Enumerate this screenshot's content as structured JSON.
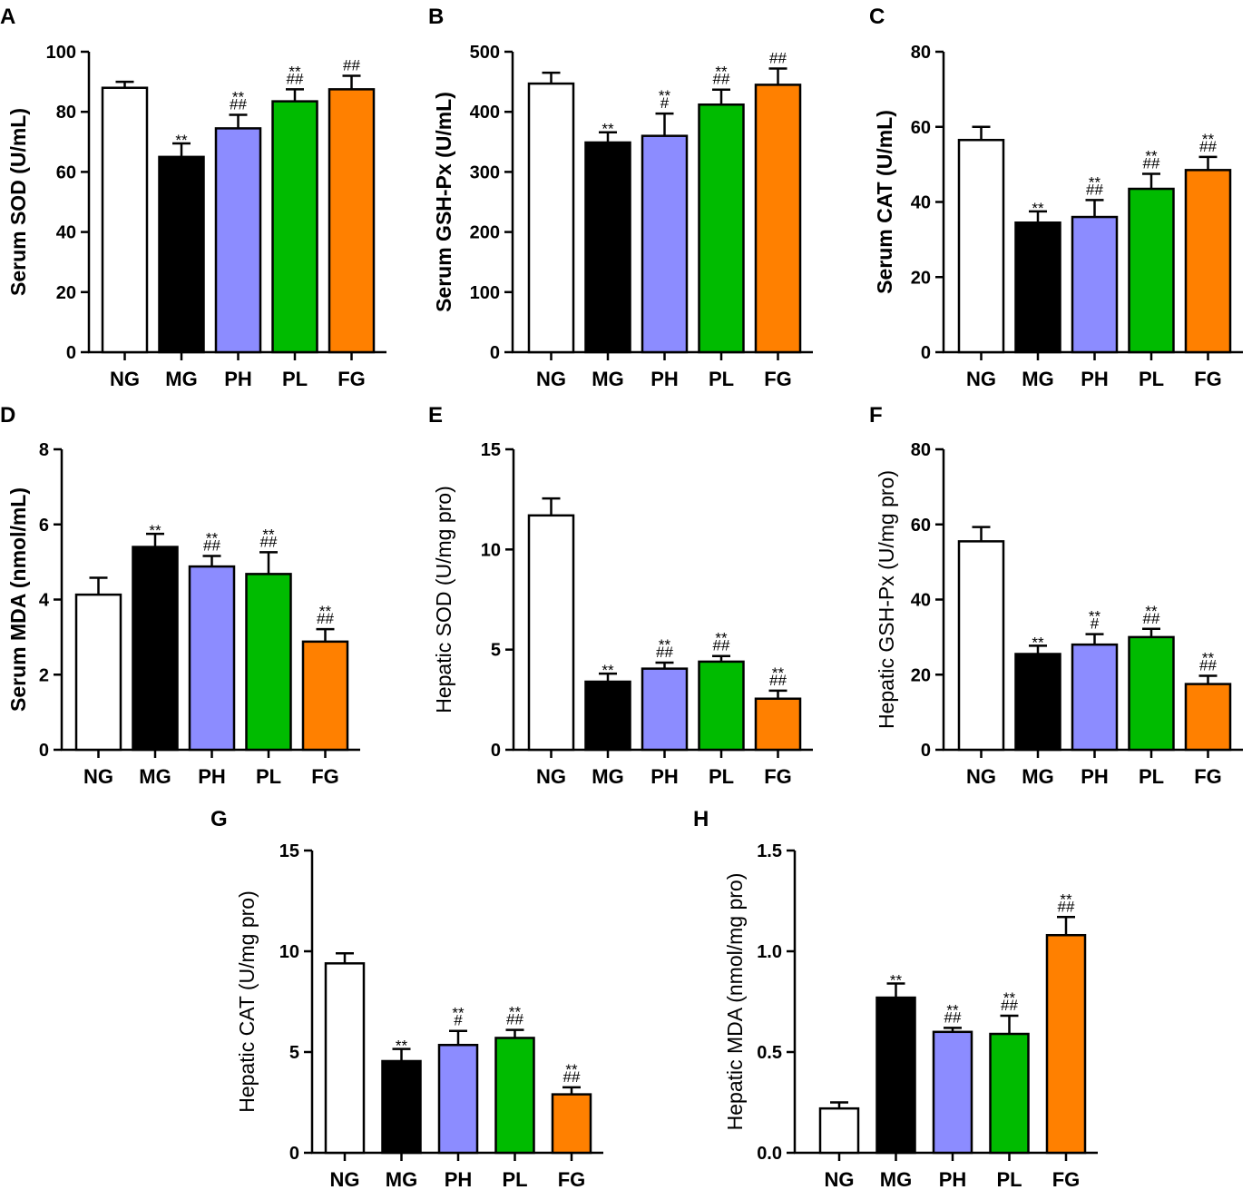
{
  "figure": {
    "groups": [
      "NG",
      "MG",
      "PH",
      "PL",
      "FG"
    ],
    "colors": {
      "NG": "#ffffff",
      "MG": "#000000",
      "PH": "#8c8cff",
      "PL": "#00bb00",
      "FG": "#ff8000"
    }
  },
  "chart_data": [
    {
      "panel": "A",
      "type": "bar",
      "ylabel": "Serum SOD (U/mL)",
      "categories": [
        "NG",
        "MG",
        "PH",
        "PL",
        "FG"
      ],
      "values": [
        88,
        65,
        74.5,
        83.5,
        87.5
      ],
      "errors": [
        2,
        4.5,
        4.5,
        4,
        4.5
      ],
      "ylim": [
        0,
        100
      ],
      "yticks": [
        "0",
        "20",
        "40",
        "60",
        "80",
        "100"
      ],
      "annotations": [
        [],
        [
          "**"
        ],
        [
          "**",
          "##"
        ],
        [
          "**",
          "##"
        ],
        [
          "##"
        ]
      ]
    },
    {
      "panel": "B",
      "type": "bar",
      "ylabel": "Serum GSH-Px (U/mL)",
      "categories": [
        "NG",
        "MG",
        "PH",
        "PL",
        "FG"
      ],
      "values": [
        447,
        349,
        360,
        412,
        445
      ],
      "errors": [
        18,
        17,
        37,
        25,
        27
      ],
      "ylim": [
        0,
        500
      ],
      "yticks": [
        "0",
        "100",
        "200",
        "300",
        "400",
        "500"
      ],
      "annotations": [
        [],
        [
          "**"
        ],
        [
          "**",
          "#"
        ],
        [
          "**",
          "##"
        ],
        [
          "##"
        ]
      ]
    },
    {
      "panel": "C",
      "type": "bar",
      "ylabel": "Serum CAT (U/mL)",
      "categories": [
        "NG",
        "MG",
        "PH",
        "PL",
        "FG"
      ],
      "values": [
        56.5,
        34.5,
        36,
        43.5,
        48.5
      ],
      "errors": [
        3.5,
        3,
        4.5,
        4,
        3.5
      ],
      "ylim": [
        0,
        80
      ],
      "yticks": [
        "0",
        "20",
        "40",
        "60",
        "80"
      ],
      "annotations": [
        [],
        [
          "**"
        ],
        [
          "**",
          "##"
        ],
        [
          "**",
          "##"
        ],
        [
          "**",
          "##"
        ]
      ]
    },
    {
      "panel": "D",
      "type": "bar",
      "ylabel": "Serum MDA (nmol/mL)",
      "categories": [
        "NG",
        "MG",
        "PH",
        "PL",
        "FG"
      ],
      "values": [
        4.13,
        5.4,
        4.88,
        4.68,
        2.88
      ],
      "errors": [
        0.45,
        0.35,
        0.28,
        0.58,
        0.33
      ],
      "ylim": [
        0,
        8
      ],
      "yticks": [
        "0",
        "2",
        "4",
        "6",
        "8"
      ],
      "annotations": [
        [],
        [
          "**"
        ],
        [
          "**",
          "##"
        ],
        [
          "**",
          "##"
        ],
        [
          "**",
          "##"
        ]
      ]
    },
    {
      "panel": "E",
      "type": "bar",
      "ylabel": "Hepatic SOD (U/mg pro)",
      "categories": [
        "NG",
        "MG",
        "PH",
        "PL",
        "FG"
      ],
      "values": [
        11.7,
        3.4,
        4.05,
        4.4,
        2.55
      ],
      "errors": [
        0.85,
        0.4,
        0.3,
        0.28,
        0.4
      ],
      "ylim": [
        0,
        15
      ],
      "yticks": [
        "0",
        "5",
        "10",
        "15"
      ],
      "annotations": [
        [],
        [
          "**"
        ],
        [
          "**",
          "##"
        ],
        [
          "**",
          "##"
        ],
        [
          "**",
          "##"
        ]
      ]
    },
    {
      "panel": "F",
      "type": "bar",
      "ylabel": "Hepatic GSH-Px (U/mg pro)",
      "categories": [
        "NG",
        "MG",
        "PH",
        "PL",
        "FG"
      ],
      "values": [
        55.5,
        25.5,
        28,
        30,
        17.5
      ],
      "errors": [
        3.8,
        2.2,
        2.8,
        2.2,
        2.2
      ],
      "ylim": [
        0,
        80
      ],
      "yticks": [
        "0",
        "20",
        "40",
        "60",
        "80"
      ],
      "annotations": [
        [],
        [
          "**"
        ],
        [
          "**",
          "#"
        ],
        [
          "**",
          "##"
        ],
        [
          "**",
          "##"
        ]
      ]
    },
    {
      "panel": "G",
      "type": "bar",
      "ylabel": "Hepatic CAT (U/mg pro)",
      "categories": [
        "NG",
        "MG",
        "PH",
        "PL",
        "FG"
      ],
      "values": [
        9.4,
        4.55,
        5.35,
        5.7,
        2.9
      ],
      "errors": [
        0.5,
        0.6,
        0.7,
        0.4,
        0.35
      ],
      "ylim": [
        0,
        15
      ],
      "yticks": [
        "0",
        "5",
        "10",
        "15"
      ],
      "annotations": [
        [],
        [
          "**"
        ],
        [
          "**",
          "#"
        ],
        [
          "**",
          "##"
        ],
        [
          "**",
          "##"
        ]
      ]
    },
    {
      "panel": "H",
      "type": "bar",
      "ylabel": "Hepatic MDA (nmol/mg pro)",
      "categories": [
        "NG",
        "MG",
        "PH",
        "PL",
        "FG"
      ],
      "values": [
        0.22,
        0.77,
        0.6,
        0.59,
        1.08
      ],
      "errors": [
        0.03,
        0.07,
        0.02,
        0.09,
        0.09
      ],
      "ylim": [
        0,
        1.5
      ],
      "yticks": [
        "0.0",
        "0.5",
        "1.0",
        "1.5"
      ],
      "annotations": [
        [],
        [
          "**"
        ],
        [
          "**",
          "##"
        ],
        [
          "**",
          "##"
        ],
        [
          "**",
          "##"
        ]
      ]
    }
  ]
}
